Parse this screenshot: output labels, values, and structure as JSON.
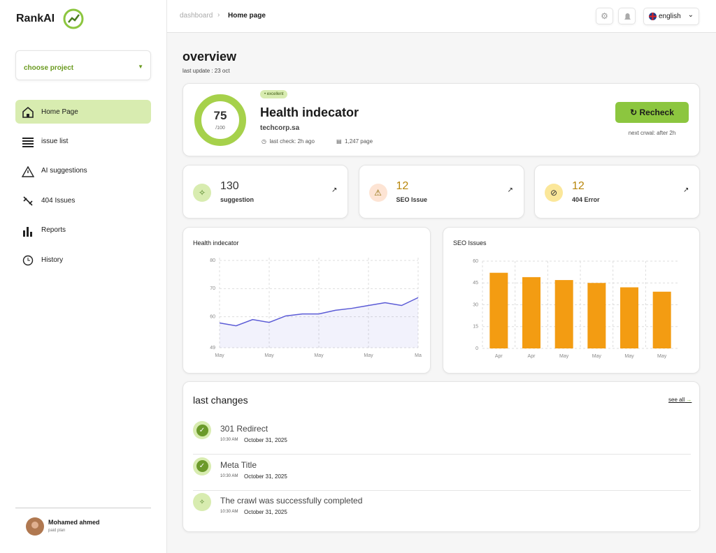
{
  "brand": "RankAI",
  "project_select": "choose project",
  "nav": [
    {
      "label": "Home Page"
    },
    {
      "label": "issue list"
    },
    {
      "label": "AI suggestions"
    },
    {
      "label": "404 Issues"
    },
    {
      "label": "Reports"
    },
    {
      "label": "History"
    }
  ],
  "user": {
    "name": "Mohamed ahmed",
    "plan": "paid plan"
  },
  "breadcrumb": {
    "parent": "dashboard",
    "current": "Home page"
  },
  "language": "english",
  "overview": {
    "title": "overview",
    "subtitle": "last update : 23 oct"
  },
  "health": {
    "score": 75,
    "max": "/100",
    "badge": "excellent",
    "title": "Health indecator",
    "domain": "techcorp.sa",
    "last_check": "last check: 2h ago",
    "pages": "1,247 page",
    "button": "Recheck",
    "next_crawl": "next crwal: after 2h"
  },
  "stats": [
    {
      "value": 130,
      "label": "suggestion"
    },
    {
      "value": 12,
      "label": "SEO Issue"
    },
    {
      "value": 12,
      "label": "404 Error"
    }
  ],
  "chart_data": [
    {
      "type": "line",
      "title": "Health indecator",
      "x": [
        0,
        1,
        2,
        3,
        4,
        5,
        6,
        7,
        8,
        9,
        10,
        11,
        12
      ],
      "series": [
        {
          "color": "#5b5bd6",
          "values": [
            57.8,
            56.8,
            59,
            58,
            60.3,
            61,
            61,
            62.3,
            63,
            64,
            65,
            64,
            66.8
          ]
        }
      ],
      "xlim": [
        0,
        12
      ],
      "xticks": [
        {
          "value": 0,
          "label": "May"
        },
        {
          "value": 3,
          "label": "May"
        },
        {
          "value": 6,
          "label": "May"
        },
        {
          "value": 9,
          "label": "May"
        },
        {
          "value": 12,
          "label": "Ma"
        }
      ],
      "ylim": [
        49,
        81
      ],
      "yticks": [
        49,
        60,
        70,
        80
      ],
      "grid": true
    },
    {
      "type": "bar",
      "title": "SEO Issues",
      "categories": [
        "Apr",
        "Apr",
        "May",
        "May",
        "May",
        "May"
      ],
      "values": [
        52,
        49,
        47,
        45,
        42,
        39
      ],
      "color": "#f39c12",
      "ylim": [
        0,
        60
      ],
      "yticks": [
        0,
        15,
        30,
        45,
        60
      ],
      "grid": true
    }
  ],
  "last_changes": {
    "title": "last changes",
    "see_all": "see all",
    "items": [
      {
        "title": "301 Redirect",
        "time": "10:30 AM",
        "date": "October 31, 2025"
      },
      {
        "title": "Meta Title",
        "time": "10:30 AM",
        "date": "October 31, 2025"
      },
      {
        "title": "The crawl was successfully completed",
        "time": "10:30 AM",
        "date": "October 31, 2025"
      }
    ]
  }
}
